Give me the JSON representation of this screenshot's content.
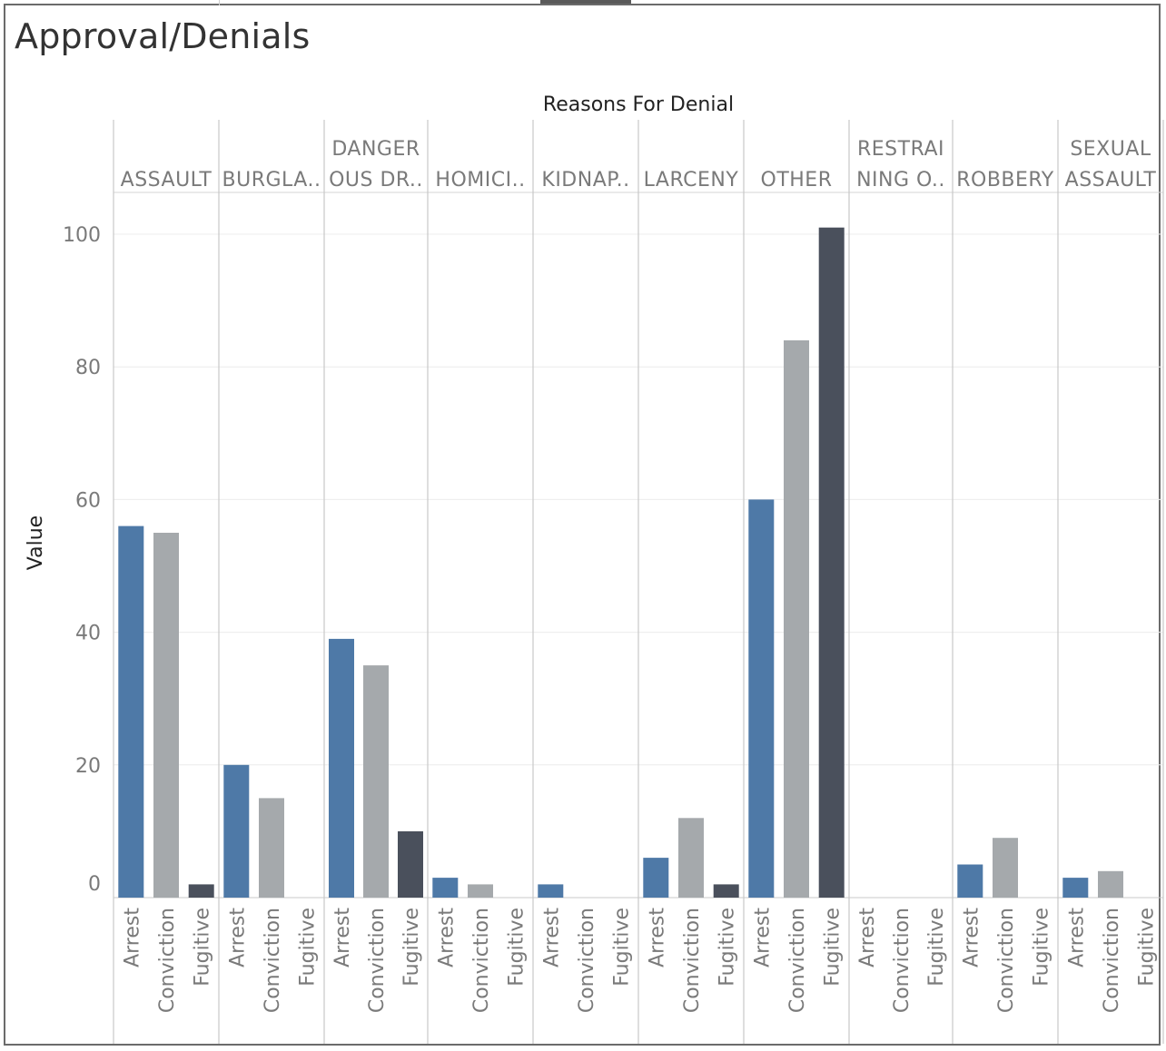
{
  "title": "Approval/Denials",
  "chart_data": {
    "type": "bar",
    "column_header": "Reasons For Denial",
    "ylabel": "Value",
    "ylim": [
      0,
      110
    ],
    "yticks": [
      0,
      20,
      40,
      60,
      80,
      100
    ],
    "grid": true,
    "sub_categories": [
      "Arrest",
      "Conviction",
      "Fugitive"
    ],
    "colors": {
      "Arrest": "#4e79a7",
      "Conviction": "#a5a9ac",
      "Fugitive": "#4a505c"
    },
    "groups": [
      {
        "label_lines": [
          "ASSAULT"
        ],
        "values": [
          56,
          55,
          2
        ]
      },
      {
        "label_lines": [
          "BURGLA.."
        ],
        "values": [
          20,
          15,
          0
        ]
      },
      {
        "label_lines": [
          "DANGER",
          "OUS DR.."
        ],
        "values": [
          39,
          35,
          10
        ]
      },
      {
        "label_lines": [
          "HOMICI.."
        ],
        "values": [
          3,
          2,
          0
        ]
      },
      {
        "label_lines": [
          "KIDNAP.."
        ],
        "values": [
          2,
          0,
          0
        ]
      },
      {
        "label_lines": [
          "LARCENY"
        ],
        "values": [
          6,
          12,
          2
        ]
      },
      {
        "label_lines": [
          "OTHER"
        ],
        "values": [
          60,
          84,
          101
        ]
      },
      {
        "label_lines": [
          "RESTRAI",
          "NING O.."
        ],
        "values": [
          0,
          0,
          0
        ]
      },
      {
        "label_lines": [
          "ROBBERY"
        ],
        "values": [
          5,
          9,
          0
        ]
      },
      {
        "label_lines": [
          "SEXUAL",
          "ASSAULT"
        ],
        "values": [
          3,
          4,
          0
        ]
      }
    ]
  }
}
